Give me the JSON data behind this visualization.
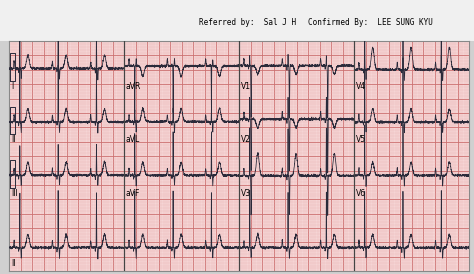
{
  "header_text1": "Referred by:  Sal J H",
  "header_text2": "Confirmed By:  LEE SUNG KYU",
  "paper_color": "#f5d5d5",
  "grid_minor_color": "#e8b0b0",
  "grid_major_color": "#cc7070",
  "header_bg": "#e8e8e8",
  "signal_color": "#2a2a3a",
  "font_size_label": 5.5,
  "font_size_header": 5.5,
  "lead_layout": [
    [
      "I",
      "aVR",
      "V1",
      "V4"
    ],
    [
      "II",
      "aVL",
      "V2",
      "V5"
    ],
    [
      "III",
      "aVF",
      "V3",
      "V6"
    ]
  ],
  "rhythm_label": "II"
}
